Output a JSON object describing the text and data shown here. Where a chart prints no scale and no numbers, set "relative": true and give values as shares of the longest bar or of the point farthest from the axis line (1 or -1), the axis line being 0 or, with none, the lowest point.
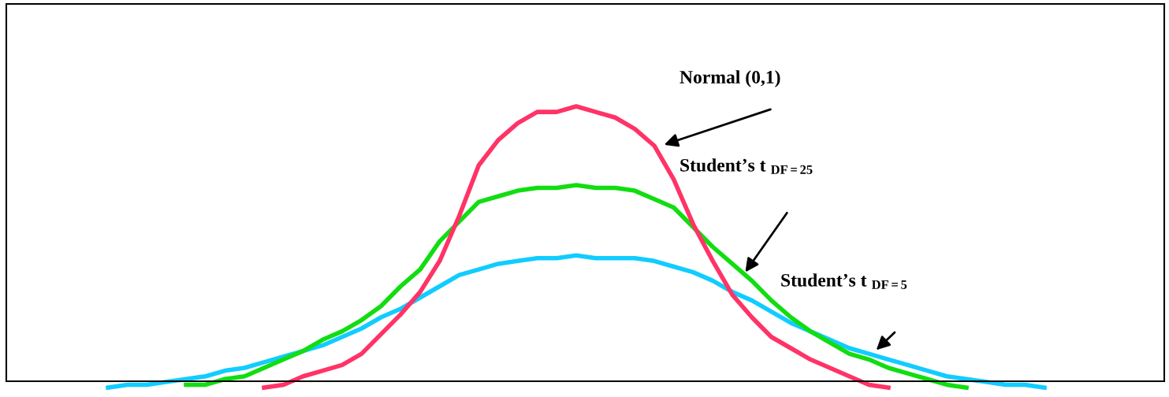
{
  "chart_data": {
    "type": "line",
    "relative": true,
    "categories": [
      null,
      null,
      null,
      null,
      null,
      null,
      null,
      null,
      null,
      null,
      null,
      null,
      null,
      null,
      null,
      null,
      null,
      null,
      null,
      null,
      null,
      null,
      null,
      null,
      null,
      null,
      null,
      null,
      null,
      null,
      null,
      null,
      null,
      null,
      null,
      null,
      null,
      null,
      null,
      null,
      null,
      null,
      null,
      null,
      null,
      null,
      null,
      null,
      null
    ],
    "annotations": [
      "Normal (0,1)",
      "Student’s t $_{DF=25}$",
      "Student’s t $_{DF=5}$"
    ],
    "series": [
      {
        "color": "#ff3366",
        "values": [
          null,
          null,
          null,
          null,
          null,
          null,
          null,
          null,
          0.0,
          0.01,
          0.04,
          0.06,
          0.08,
          0.12,
          0.19,
          0.26,
          0.34,
          0.45,
          0.61,
          0.79,
          0.88,
          0.94,
          0.98,
          0.98,
          1.0,
          0.98,
          0.96,
          0.92,
          0.86,
          0.74,
          0.58,
          0.45,
          0.33,
          0.25,
          0.18,
          0.14,
          0.1,
          0.07,
          0.04,
          0.01,
          0.0,
          null,
          null,
          null,
          null,
          null,
          null,
          null,
          null
        ]
      },
      {
        "color": "#11dd11",
        "values": [
          null,
          null,
          null,
          null,
          0.01,
          0.01,
          0.03,
          0.04,
          0.07,
          0.1,
          0.13,
          0.17,
          0.2,
          0.24,
          0.29,
          0.36,
          0.42,
          0.52,
          0.59,
          0.66,
          0.68,
          0.7,
          0.71,
          0.71,
          0.72,
          0.71,
          0.71,
          0.7,
          0.67,
          0.64,
          0.57,
          0.5,
          0.44,
          0.38,
          0.31,
          0.25,
          0.2,
          0.16,
          0.12,
          0.1,
          0.07,
          0.05,
          0.03,
          0.01,
          0.0,
          null,
          null,
          null,
          null
        ]
      },
      {
        "color": "#11ccff",
        "values": [
          0.0,
          0.01,
          0.01,
          0.02,
          0.03,
          0.04,
          0.06,
          0.07,
          0.09,
          0.11,
          0.13,
          0.15,
          0.18,
          0.21,
          0.25,
          0.28,
          0.32,
          0.36,
          0.4,
          0.42,
          0.44,
          0.45,
          0.46,
          0.46,
          0.47,
          0.46,
          0.46,
          0.46,
          0.45,
          0.43,
          0.41,
          0.38,
          0.34,
          0.31,
          0.27,
          0.23,
          0.2,
          0.17,
          0.14,
          0.12,
          0.1,
          0.08,
          0.06,
          0.04,
          0.03,
          0.02,
          0.01,
          0.01,
          0.0
        ]
      }
    ]
  }
}
